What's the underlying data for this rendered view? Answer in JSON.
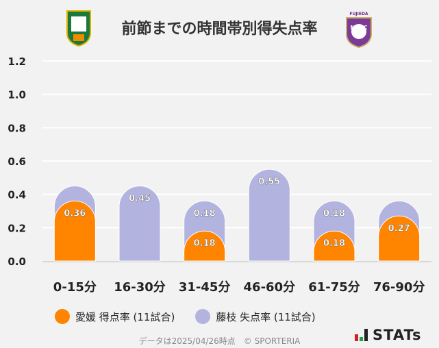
{
  "title": "前節までの時間帯別得失点率",
  "logos": {
    "left": "愛媛FC crest",
    "right": "FUJIEDA MYFC"
  },
  "chart_data": {
    "type": "bar",
    "stacked": true,
    "categories": [
      "0-15分",
      "16-30分",
      "31-45分",
      "46-60分",
      "61-75分",
      "76-90分"
    ],
    "series": [
      {
        "name": "愛媛 得点率 (11試合)",
        "color": "#ff8400",
        "values": [
          0.36,
          0,
          0.18,
          0,
          0.18,
          0.27
        ],
        "labels": [
          "0.36",
          "",
          "0.18",
          "",
          "0.18",
          "0.27"
        ]
      },
      {
        "name": "藤枝 失点率 (11試合)",
        "color": "#b3b3df",
        "values": [
          0.09,
          0.45,
          0.18,
          0.55,
          0.18,
          0.09
        ],
        "labels": [
          "",
          "0.45",
          "0.18",
          "0.55",
          "0.18",
          ""
        ]
      }
    ],
    "yticks": [
      "0.0",
      "0.2",
      "0.4",
      "0.6",
      "0.8",
      "1.0",
      "1.2"
    ],
    "ylim": [
      0,
      1.2
    ],
    "grid": true,
    "legend": "bottom"
  },
  "footer": "データは2025/04/26時点　© SPORTERIA",
  "brand": "STATs"
}
